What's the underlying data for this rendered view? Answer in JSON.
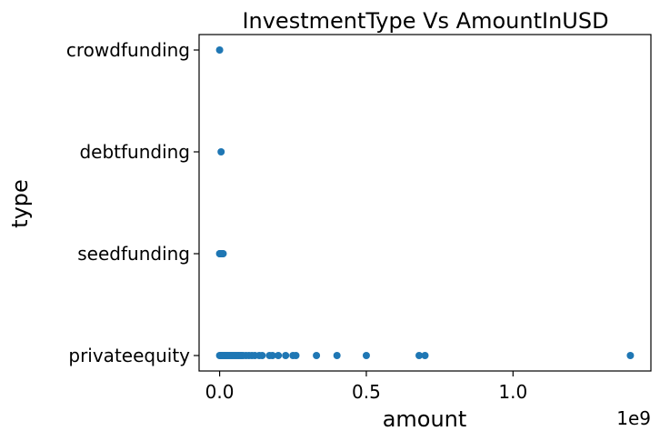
{
  "chart_data": {
    "type": "scatter",
    "title": "InvestmentType Vs AmountInUSD",
    "xlabel": "amount",
    "ylabel": "type",
    "x_offset_label": "1e9",
    "xlim": [
      -70000000,
      1470000000
    ],
    "x_ticks": [
      0,
      500000000,
      1000000000
    ],
    "x_tick_labels": [
      "0.0",
      "0.5",
      "1.0"
    ],
    "categories": [
      "privateequity",
      "seedfunding",
      "debtfunding",
      "crowdfunding"
    ],
    "marker_color": "#1f77b4",
    "grid": false,
    "legend": "none",
    "points": [
      {
        "type": "crowdfunding",
        "amount": 0
      },
      {
        "type": "debtfunding",
        "amount": 5000000
      },
      {
        "type": "seedfunding",
        "amount": 0
      },
      {
        "type": "seedfunding",
        "amount": 1000000
      },
      {
        "type": "seedfunding",
        "amount": 2000000
      },
      {
        "type": "seedfunding",
        "amount": 3000000
      },
      {
        "type": "seedfunding",
        "amount": 4000000
      },
      {
        "type": "seedfunding",
        "amount": 5000000
      },
      {
        "type": "seedfunding",
        "amount": 6000000
      },
      {
        "type": "seedfunding",
        "amount": 8000000
      },
      {
        "type": "seedfunding",
        "amount": 10000000
      },
      {
        "type": "seedfunding",
        "amount": 12000000
      },
      {
        "type": "privateequity",
        "amount": 0
      },
      {
        "type": "privateequity",
        "amount": 3000000
      },
      {
        "type": "privateequity",
        "amount": 6000000
      },
      {
        "type": "privateequity",
        "amount": 10000000
      },
      {
        "type": "privateequity",
        "amount": 14000000
      },
      {
        "type": "privateequity",
        "amount": 18000000
      },
      {
        "type": "privateequity",
        "amount": 22000000
      },
      {
        "type": "privateequity",
        "amount": 26000000
      },
      {
        "type": "privateequity",
        "amount": 30000000
      },
      {
        "type": "privateequity",
        "amount": 35000000
      },
      {
        "type": "privateequity",
        "amount": 40000000
      },
      {
        "type": "privateequity",
        "amount": 45000000
      },
      {
        "type": "privateequity",
        "amount": 50000000
      },
      {
        "type": "privateequity",
        "amount": 55000000
      },
      {
        "type": "privateequity",
        "amount": 60000000
      },
      {
        "type": "privateequity",
        "amount": 65000000
      },
      {
        "type": "privateequity",
        "amount": 70000000
      },
      {
        "type": "privateequity",
        "amount": 75000000
      },
      {
        "type": "privateequity",
        "amount": 80000000
      },
      {
        "type": "privateequity",
        "amount": 90000000
      },
      {
        "type": "privateequity",
        "amount": 100000000
      },
      {
        "type": "privateequity",
        "amount": 110000000
      },
      {
        "type": "privateequity",
        "amount": 120000000
      },
      {
        "type": "privateequity",
        "amount": 135000000
      },
      {
        "type": "privateequity",
        "amount": 145000000
      },
      {
        "type": "privateequity",
        "amount": 170000000
      },
      {
        "type": "privateequity",
        "amount": 180000000
      },
      {
        "type": "privateequity",
        "amount": 200000000
      },
      {
        "type": "privateequity",
        "amount": 225000000
      },
      {
        "type": "privateequity",
        "amount": 250000000
      },
      {
        "type": "privateequity",
        "amount": 260000000
      },
      {
        "type": "privateequity",
        "amount": 330000000
      },
      {
        "type": "privateequity",
        "amount": 400000000
      },
      {
        "type": "privateequity",
        "amount": 500000000
      },
      {
        "type": "privateequity",
        "amount": 680000000
      },
      {
        "type": "privateequity",
        "amount": 700000000
      },
      {
        "type": "privateequity",
        "amount": 1400000000
      }
    ]
  }
}
